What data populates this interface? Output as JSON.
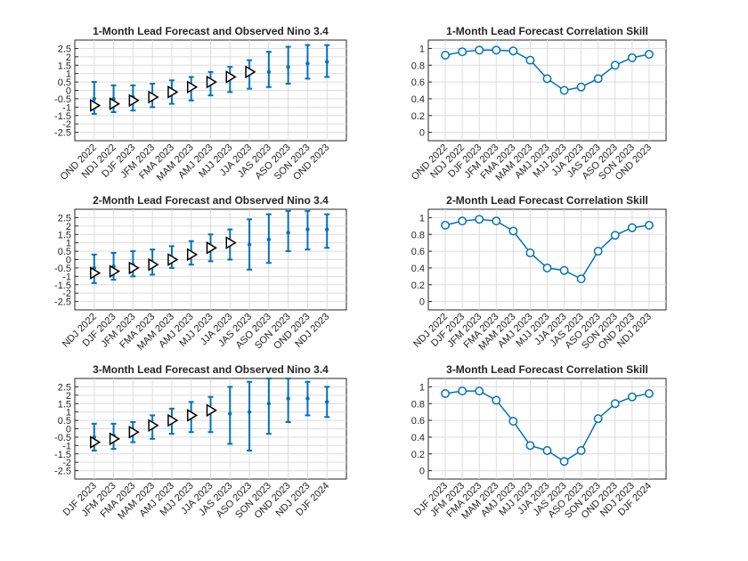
{
  "colors": {
    "forecast": "#0072bd",
    "observed": "#000000",
    "grid": "#dcdcdc",
    "axes": "#262626"
  },
  "chart_data": [
    {
      "type": "errorbar",
      "title": "1-Month Lead Forecast and Observed Nino 3.4",
      "categories": [
        "OND 2022",
        "NDJ 2022",
        "DJF 2023",
        "JFM 2023",
        "FMA 2023",
        "MAM 2023",
        "AMJ 2023",
        "MJJ 2023",
        "JJA 2023",
        "JAS 2023",
        "ASO 2023",
        "SON 2023",
        "OND 2023"
      ],
      "yticks": [
        "2.5",
        "2",
        "1.5",
        "1",
        "0.5",
        "0",
        "-0.5",
        "-1",
        "-1.5",
        "-2",
        "-2.5"
      ],
      "ylim": [
        -3,
        3
      ],
      "grid": true,
      "forecast": {
        "mean": [
          -0.5,
          -0.5,
          -0.4,
          -0.3,
          -0.1,
          0.1,
          0.4,
          0.7,
          1.0,
          1.1,
          1.4,
          1.6,
          1.7
        ],
        "lower": [
          -1.4,
          -1.3,
          -1.2,
          -1.0,
          -0.8,
          -0.6,
          -0.3,
          -0.1,
          0.1,
          0.2,
          0.4,
          0.7,
          0.8
        ],
        "upper": [
          0.5,
          0.3,
          0.3,
          0.4,
          0.6,
          0.8,
          1.1,
          1.4,
          1.8,
          2.3,
          2.6,
          2.7,
          2.7
        ]
      },
      "observed": [
        -0.9,
        -0.8,
        -0.6,
        -0.4,
        -0.1,
        0.2,
        0.5,
        0.8,
        1.1,
        null,
        null,
        null,
        null
      ]
    },
    {
      "type": "errorbar",
      "title": "2-Month Lead Forecast and Observed Nino 3.4",
      "categories": [
        "NDJ 2022",
        "DJF 2023",
        "JFM 2023",
        "FMA 2023",
        "MAM 2023",
        "AMJ 2023",
        "MJJ 2023",
        "JJA 2023",
        "JAS 2023",
        "ASO 2023",
        "SON 2023",
        "OND 2023",
        "NDJ 2023"
      ],
      "yticks": [
        "2.5",
        "2",
        "1.5",
        "1",
        "0.5",
        "0",
        "-0.5",
        "-1",
        "-1.5",
        "-2",
        "-2.5"
      ],
      "ylim": [
        -3,
        3
      ],
      "grid": true,
      "forecast": {
        "mean": [
          -0.5,
          -0.4,
          -0.3,
          -0.2,
          0.1,
          0.3,
          0.6,
          0.9,
          0.9,
          1.2,
          1.6,
          1.8,
          1.8
        ],
        "lower": [
          -1.4,
          -1.2,
          -1.0,
          -0.9,
          -0.5,
          -0.3,
          -0.1,
          0.0,
          -0.6,
          -0.2,
          0.5,
          0.6,
          0.7
        ],
        "upper": [
          0.3,
          0.4,
          0.5,
          0.6,
          0.8,
          1.1,
          1.5,
          1.8,
          2.4,
          2.7,
          2.9,
          2.9,
          2.7
        ]
      },
      "observed": [
        -0.8,
        -0.7,
        -0.5,
        -0.3,
        0.0,
        0.3,
        0.7,
        1.0,
        null,
        null,
        null,
        null,
        null
      ]
    },
    {
      "type": "errorbar",
      "title": "3-Month Lead Forecast and Observed Nino 3.4",
      "categories": [
        "DJF 2023",
        "JFM 2023",
        "FMA 2023",
        "MAM 2023",
        "AMJ 2023",
        "MJJ 2023",
        "JJA 2023",
        "JAS 2023",
        "ASO 2023",
        "SON 2023",
        "OND 2023",
        "NDJ 2023",
        "DJF 2024"
      ],
      "yticks": [
        "2.5",
        "2",
        "1.5",
        "1",
        "0.5",
        "0",
        "-0.5",
        "-1",
        "-1.5",
        "-2",
        "-2.5"
      ],
      "ylim": [
        -3,
        3
      ],
      "grid": true,
      "forecast": {
        "mean": [
          -0.5,
          -0.4,
          -0.1,
          0.2,
          0.5,
          0.8,
          1.0,
          0.9,
          1.0,
          1.5,
          1.8,
          1.8,
          1.6
        ],
        "lower": [
          -1.3,
          -1.2,
          -0.8,
          -0.6,
          -0.3,
          -0.2,
          -0.2,
          -0.9,
          -1.3,
          -0.3,
          0.4,
          0.8,
          0.7
        ],
        "upper": [
          0.3,
          0.3,
          0.4,
          0.8,
          1.2,
          1.6,
          1.9,
          2.5,
          2.8,
          3.0,
          3.0,
          2.8,
          2.5
        ]
      },
      "observed": [
        -0.8,
        -0.6,
        -0.2,
        0.2,
        0.5,
        0.8,
        1.1,
        null,
        null,
        null,
        null,
        null,
        null
      ]
    },
    {
      "type": "line",
      "title": "1-Month Lead Forecast Correlation Skill",
      "categories": [
        "OND 2022",
        "NDJ 2022",
        "DJF 2023",
        "JFM 2023",
        "FMA 2023",
        "MAM 2023",
        "AMJ 2023",
        "MJJ 2023",
        "JJA 2023",
        "JAS 2023",
        "ASO 2023",
        "SON 2023",
        "OND 2023"
      ],
      "yticks": [
        "1",
        "0.8",
        "0.6",
        "0.4",
        "0.2",
        "0"
      ],
      "ylim": [
        -0.1,
        1.1
      ],
      "grid": true,
      "values": [
        0.92,
        0.96,
        0.98,
        0.98,
        0.97,
        0.86,
        0.64,
        0.5,
        0.54,
        0.64,
        0.8,
        0.89,
        0.93
      ]
    },
    {
      "type": "line",
      "title": "2-Month Lead Forecast Correlation Skill",
      "categories": [
        "NDJ 2022",
        "DJF 2023",
        "JFM 2023",
        "FMA 2023",
        "MAM 2023",
        "AMJ 2023",
        "MJJ 2023",
        "JJA 2023",
        "JAS 2023",
        "ASO 2023",
        "SON 2023",
        "OND 2023",
        "NDJ 2023"
      ],
      "yticks": [
        "1",
        "0.8",
        "0.6",
        "0.4",
        "0.2",
        "0"
      ],
      "ylim": [
        -0.1,
        1.1
      ],
      "grid": true,
      "values": [
        0.91,
        0.96,
        0.98,
        0.96,
        0.84,
        0.58,
        0.4,
        0.37,
        0.27,
        0.6,
        0.79,
        0.88,
        0.91
      ]
    },
    {
      "type": "line",
      "title": "3-Month Lead Forecast Correlation Skill",
      "categories": [
        "DJF 2023",
        "JFM 2023",
        "FMA 2023",
        "MAM 2023",
        "AMJ 2023",
        "MJJ 2023",
        "JJA 2023",
        "JAS 2023",
        "ASO 2023",
        "SON 2023",
        "OND 2023",
        "NDJ 2023",
        "DJF 2024"
      ],
      "yticks": [
        "1",
        "0.8",
        "0.6",
        "0.4",
        "0.2",
        "0"
      ],
      "ylim": [
        -0.1,
        1.1
      ],
      "grid": true,
      "values": [
        0.92,
        0.95,
        0.95,
        0.84,
        0.59,
        0.3,
        0.24,
        0.11,
        0.24,
        0.62,
        0.8,
        0.88,
        0.92
      ]
    }
  ]
}
